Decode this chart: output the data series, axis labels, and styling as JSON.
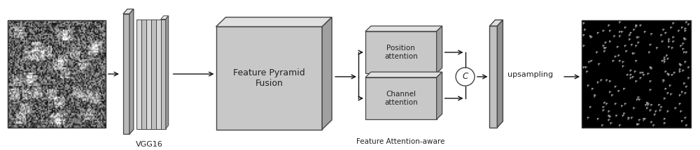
{
  "bg_color": "#ffffff",
  "face_color": "#c8c8c8",
  "face_light": "#d8d8d8",
  "top_color": "#e8e8e8",
  "side_color": "#a0a0a0",
  "edge_color": "#444444",
  "arrow_color": "#111111",
  "text_color": "#222222",
  "vgg_label": "VGG16",
  "fpf_label": "Feature Pyramid\nFusion",
  "pos_label": "Position\nattention",
  "chan_label": "Channel\nattention",
  "concat_label": "C",
  "upsample_label": "upsampling",
  "bottom_label": "Feature Attention-aware"
}
